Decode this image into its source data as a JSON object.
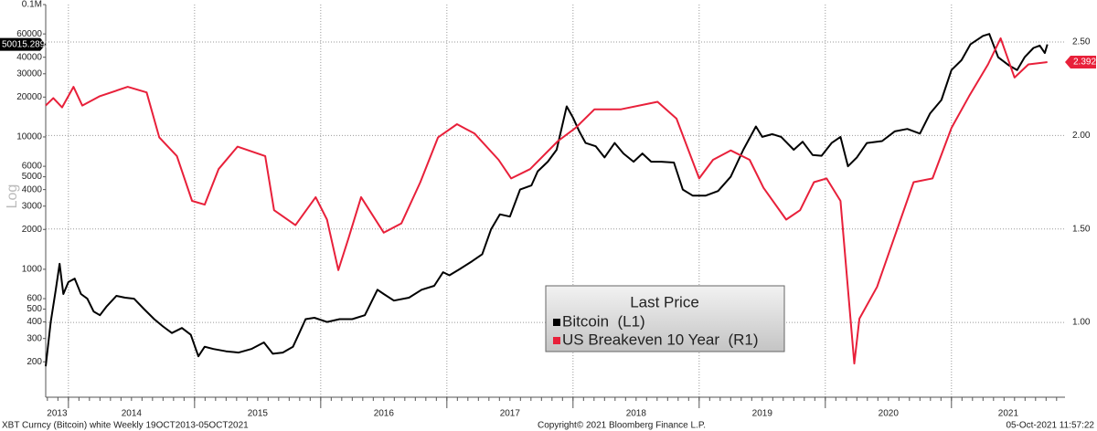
{
  "chart_data": {
    "type": "line",
    "ylabel": "Log",
    "yscale": "log",
    "legend_title": "Last Price",
    "footer": {
      "left": "XBT Curncy (Bitcoin) white  Weekly 19OCT2013-05OCT2021",
      "center": "Copyright© 2021 Bloomberg Finance L.P.",
      "right": "05-Oct-2021 11:57:22"
    },
    "xlim": [
      2013.82,
      2021.9
    ],
    "xticks": [
      2013,
      2014,
      2015,
      2016,
      2017,
      2018,
      2019,
      2020,
      2021
    ],
    "ylim": [
      108,
      100000
    ],
    "yticks": [
      200,
      300,
      400,
      500,
      600,
      1000,
      2000,
      3000,
      4000,
      5000,
      6000,
      10000,
      20000,
      30000,
      40000,
      60000,
      {
        "value": 100000,
        "label": "0.1M"
      }
    ],
    "y2lim": [
      0.6,
      2.7
    ],
    "y2ticks": [
      {
        "value": 1.0,
        "label": "1.00"
      },
      {
        "value": 1.5,
        "label": "1.50"
      },
      {
        "value": 2.0,
        "label": "2.00"
      },
      {
        "value": 2.5,
        "label": "2.50"
      }
    ],
    "grid": true,
    "series": [
      {
        "name": "Bitcoin  (L1)",
        "color": "#000000",
        "x": [
          2013.82,
          2013.86,
          2013.9,
          2013.93,
          2013.96,
          2014.0,
          2014.05,
          2014.1,
          2014.15,
          2014.2,
          2014.25,
          2014.3,
          2014.38,
          2014.45,
          2014.52,
          2014.6,
          2014.68,
          2014.75,
          2014.82,
          2014.9,
          2014.97,
          2015.03,
          2015.08,
          2015.15,
          2015.25,
          2015.35,
          2015.45,
          2015.55,
          2015.62,
          2015.7,
          2015.78,
          2015.83,
          2015.88,
          2015.95,
          2016.05,
          2016.15,
          2016.25,
          2016.35,
          2016.45,
          2016.5,
          2016.58,
          2016.7,
          2016.8,
          2016.9,
          2016.97,
          2017.02,
          2017.1,
          2017.2,
          2017.28,
          2017.35,
          2017.42,
          2017.5,
          2017.58,
          2017.67,
          2017.72,
          2017.8,
          2017.87,
          2017.95,
          2018.0,
          2018.05,
          2018.1,
          2018.18,
          2018.25,
          2018.33,
          2018.4,
          2018.48,
          2018.55,
          2018.62,
          2018.7,
          2018.8,
          2018.87,
          2018.95,
          2019.05,
          2019.15,
          2019.25,
          2019.35,
          2019.45,
          2019.5,
          2019.58,
          2019.65,
          2019.75,
          2019.82,
          2019.9,
          2019.97,
          2020.05,
          2020.12,
          2020.18,
          2020.25,
          2020.33,
          2020.45,
          2020.55,
          2020.65,
          2020.75,
          2020.83,
          2020.92,
          2021.0,
          2021.08,
          2021.15,
          2021.25,
          2021.3,
          2021.37,
          2021.45,
          2021.52,
          2021.58,
          2021.65,
          2021.7,
          2021.74,
          2021.76
        ],
        "values": [
          185,
          400,
          700,
          1100,
          650,
          800,
          850,
          650,
          600,
          480,
          450,
          520,
          630,
          610,
          600,
          500,
          420,
          370,
          330,
          360,
          320,
          220,
          260,
          250,
          240,
          235,
          250,
          280,
          230,
          235,
          260,
          330,
          420,
          430,
          400,
          420,
          420,
          450,
          700,
          650,
          580,
          610,
          700,
          750,
          950,
          900,
          1000,
          1150,
          1300,
          2000,
          2600,
          2500,
          4000,
          4300,
          5500,
          6500,
          8000,
          17000,
          14000,
          11000,
          9000,
          8500,
          7000,
          9000,
          7500,
          6500,
          7500,
          6500,
          6500,
          6400,
          4000,
          3600,
          3600,
          3900,
          5000,
          8000,
          12000,
          10000,
          10500,
          10000,
          8000,
          9200,
          7300,
          7200,
          9000,
          10000,
          6000,
          7000,
          9000,
          9300,
          11000,
          11500,
          10600,
          15000,
          19000,
          32000,
          38000,
          50000,
          58000,
          60000,
          40000,
          35000,
          32000,
          40000,
          47000,
          49000,
          43000,
          50015.2891
        ]
      },
      {
        "name": "US Breakeven 10 Year  (R1)",
        "color": "#e8203a",
        "axis": "y2",
        "x": [
          2013.82,
          2013.88,
          2013.95,
          2014.04,
          2014.11,
          2014.25,
          2014.47,
          2014.62,
          2014.72,
          2014.86,
          2014.98,
          2015.08,
          2015.19,
          2015.34,
          2015.56,
          2015.63,
          2015.8,
          2015.96,
          2016.05,
          2016.14,
          2016.22,
          2016.32,
          2016.5,
          2016.64,
          2016.79,
          2016.93,
          2017.08,
          2017.22,
          2017.41,
          2017.51,
          2017.66,
          2017.88,
          2018.02,
          2018.17,
          2018.38,
          2018.67,
          2018.82,
          2019.0,
          2019.11,
          2019.25,
          2019.4,
          2019.51,
          2019.69,
          2019.8,
          2019.91,
          2020.01,
          2020.12,
          2020.23,
          2020.27,
          2020.41,
          2020.56,
          2020.7,
          2020.85,
          2021.0,
          2021.14,
          2021.29,
          2021.39,
          2021.5,
          2021.61,
          2021.76
        ],
        "values": [
          2.16,
          2.2,
          2.15,
          2.26,
          2.16,
          2.21,
          2.26,
          2.23,
          1.99,
          1.89,
          1.65,
          1.63,
          1.82,
          1.94,
          1.89,
          1.6,
          1.52,
          1.67,
          1.55,
          1.28,
          1.45,
          1.67,
          1.48,
          1.53,
          1.75,
          1.99,
          2.06,
          2.01,
          1.87,
          1.77,
          1.82,
          1.97,
          2.04,
          2.14,
          2.14,
          2.18,
          2.09,
          1.77,
          1.87,
          1.92,
          1.87,
          1.72,
          1.55,
          1.6,
          1.75,
          1.77,
          1.65,
          0.78,
          1.02,
          1.19,
          1.48,
          1.75,
          1.77,
          2.04,
          2.21,
          2.38,
          2.52,
          2.31,
          2.38,
          2.3923
        ]
      }
    ]
  }
}
